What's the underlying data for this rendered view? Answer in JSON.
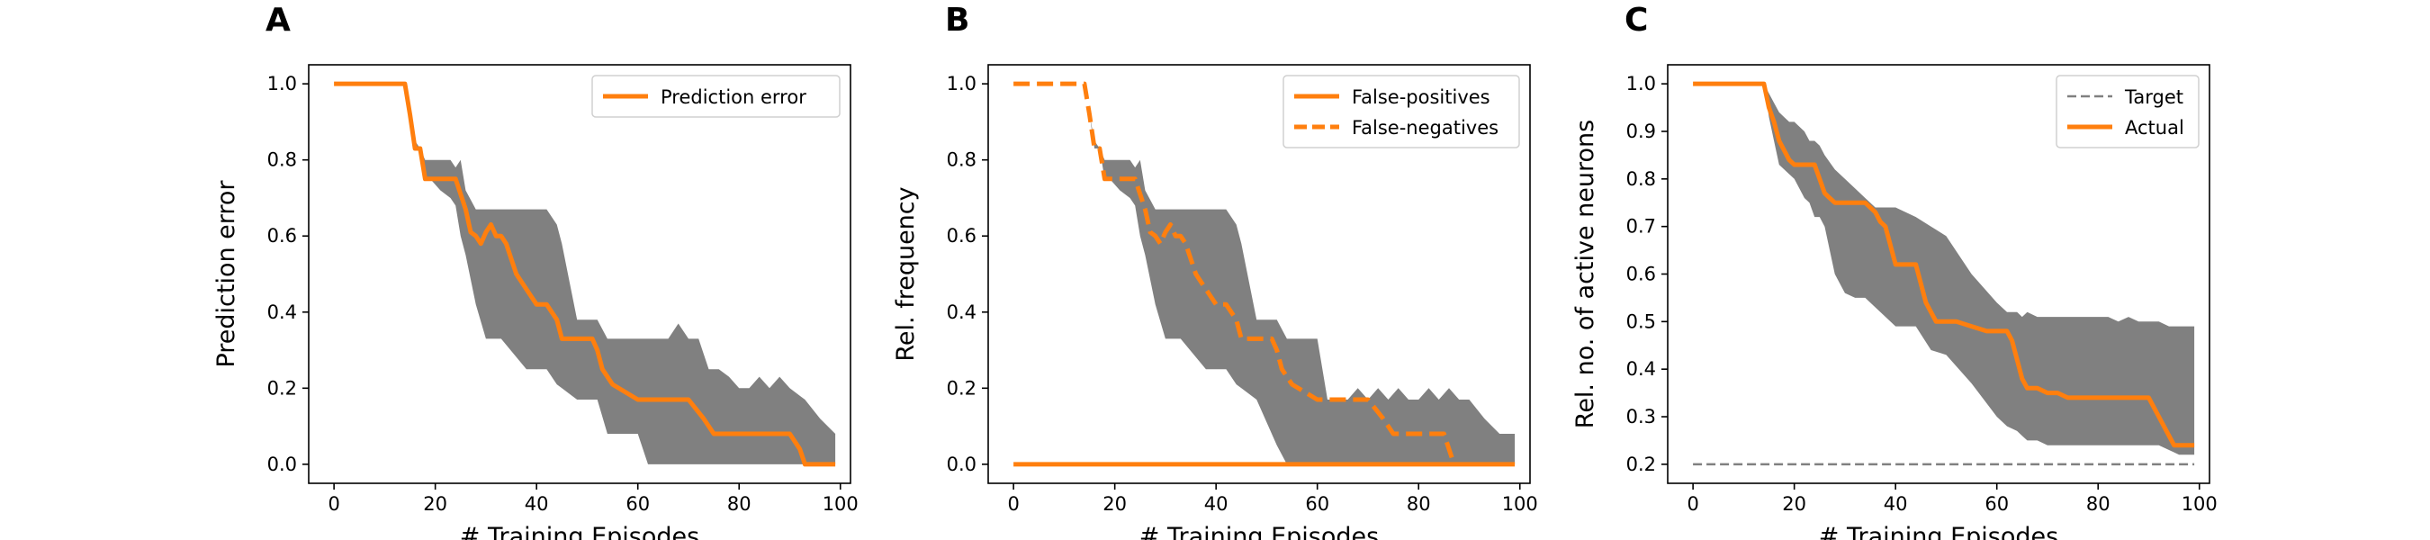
{
  "chart_data": [
    {
      "type": "line",
      "panel_label": "A",
      "xlabel": "# Training Episodes",
      "ylabel": "Prediction error",
      "xlim": [
        -5,
        102
      ],
      "ylim": [
        -0.05,
        1.05
      ],
      "xticks": [
        0,
        20,
        40,
        60,
        80,
        100
      ],
      "yticks": [
        0.0,
        0.2,
        0.4,
        0.6,
        0.8,
        1.0
      ],
      "xtick_labels": [
        "0",
        "20",
        "40",
        "60",
        "80",
        "100"
      ],
      "ytick_labels": [
        "0.0",
        "0.2",
        "0.4",
        "0.6",
        "0.8",
        "1.0"
      ],
      "legend_position": "top-right",
      "series": [
        {
          "name": "Prediction error",
          "color": "#ff7f0e",
          "style": "solid",
          "x": [
            0,
            14,
            15,
            16,
            17,
            18,
            19,
            24,
            25,
            26,
            27,
            28,
            29,
            30,
            31,
            32,
            33,
            34,
            36,
            38,
            40,
            42,
            44,
            45,
            48,
            50,
            51,
            52,
            53,
            55,
            60,
            65,
            70,
            73,
            75,
            80,
            85,
            90,
            92,
            93,
            94,
            99
          ],
          "y": [
            1.0,
            1.0,
            0.92,
            0.83,
            0.83,
            0.75,
            0.75,
            0.75,
            0.71,
            0.67,
            0.61,
            0.6,
            0.58,
            0.61,
            0.63,
            0.6,
            0.6,
            0.58,
            0.5,
            0.46,
            0.42,
            0.42,
            0.38,
            0.33,
            0.33,
            0.33,
            0.33,
            0.3,
            0.25,
            0.21,
            0.17,
            0.17,
            0.17,
            0.12,
            0.08,
            0.08,
            0.08,
            0.08,
            0.04,
            0.0,
            0.0,
            0.0
          ]
        }
      ],
      "bands": [
        {
          "color": "#808080",
          "x": [
            0,
            14,
            15,
            16,
            17,
            18,
            19,
            21,
            23,
            24,
            25,
            26,
            28,
            30,
            33,
            38,
            42,
            44,
            45,
            48,
            52,
            54,
            58,
            60,
            62,
            64,
            66,
            68,
            70,
            72,
            74,
            76,
            78,
            80,
            82,
            84,
            86,
            88,
            90,
            93,
            96,
            99
          ],
          "upper": [
            1.0,
            1.0,
            0.92,
            0.85,
            0.83,
            0.8,
            0.8,
            0.8,
            0.8,
            0.78,
            0.8,
            0.72,
            0.67,
            0.67,
            0.67,
            0.67,
            0.67,
            0.63,
            0.58,
            0.38,
            0.38,
            0.33,
            0.33,
            0.33,
            0.33,
            0.33,
            0.33,
            0.37,
            0.33,
            0.33,
            0.25,
            0.25,
            0.23,
            0.2,
            0.2,
            0.23,
            0.2,
            0.23,
            0.2,
            0.17,
            0.12,
            0.08
          ],
          "lower": [
            1.0,
            1.0,
            0.92,
            0.83,
            0.83,
            0.75,
            0.75,
            0.72,
            0.7,
            0.68,
            0.6,
            0.55,
            0.42,
            0.33,
            0.33,
            0.25,
            0.25,
            0.21,
            0.2,
            0.17,
            0.17,
            0.08,
            0.08,
            0.08,
            0.0,
            0.0,
            0.0,
            0.0,
            0.0,
            0.0,
            0.0,
            0.0,
            0.0,
            0.0,
            0.0,
            0.0,
            0.0,
            0.0,
            0.0,
            0.0,
            0.0,
            0.0
          ]
        }
      ]
    },
    {
      "type": "line",
      "panel_label": "B",
      "xlabel": "# Training Episodes",
      "ylabel": "Rel. frequency",
      "xlim": [
        -5,
        102
      ],
      "ylim": [
        -0.05,
        1.05
      ],
      "xticks": [
        0,
        20,
        40,
        60,
        80,
        100
      ],
      "yticks": [
        0.0,
        0.2,
        0.4,
        0.6,
        0.8,
        1.0
      ],
      "xtick_labels": [
        "0",
        "20",
        "40",
        "60",
        "80",
        "100"
      ],
      "ytick_labels": [
        "0.0",
        "0.2",
        "0.4",
        "0.6",
        "0.8",
        "1.0"
      ],
      "legend_position": "top-right",
      "series": [
        {
          "name": "False-positives",
          "color": "#ff7f0e",
          "style": "solid",
          "x": [
            0,
            99
          ],
          "y": [
            0.0,
            0.0
          ]
        },
        {
          "name": "False-negatives",
          "color": "#ff7f0e",
          "style": "dashed",
          "x": [
            0,
            14,
            15,
            16,
            17,
            18,
            19,
            24,
            25,
            26,
            27,
            28,
            29,
            30,
            31,
            32,
            33,
            34,
            36,
            38,
            40,
            42,
            44,
            45,
            48,
            50,
            51,
            52,
            53,
            55,
            60,
            65,
            70,
            73,
            75,
            80,
            85,
            86,
            87
          ],
          "y": [
            1.0,
            1.0,
            0.92,
            0.83,
            0.83,
            0.75,
            0.75,
            0.75,
            0.71,
            0.67,
            0.61,
            0.6,
            0.58,
            0.61,
            0.63,
            0.6,
            0.6,
            0.58,
            0.5,
            0.46,
            0.42,
            0.42,
            0.38,
            0.33,
            0.33,
            0.33,
            0.33,
            0.3,
            0.25,
            0.21,
            0.17,
            0.17,
            0.17,
            0.12,
            0.08,
            0.08,
            0.08,
            0.04,
            0.0
          ]
        }
      ],
      "bands": [
        {
          "color": "#808080",
          "x": [
            0,
            14,
            15,
            16,
            17,
            18,
            19,
            21,
            23,
            24,
            25,
            26,
            28,
            30,
            33,
            38,
            42,
            44,
            45,
            48,
            52,
            54,
            58,
            60,
            62,
            64,
            66,
            68,
            70,
            72,
            74,
            76,
            78,
            80,
            82,
            84,
            86,
            88,
            90,
            93,
            96,
            99
          ],
          "upper": [
            1.0,
            1.0,
            0.92,
            0.85,
            0.83,
            0.8,
            0.8,
            0.8,
            0.8,
            0.78,
            0.8,
            0.72,
            0.67,
            0.67,
            0.67,
            0.67,
            0.67,
            0.63,
            0.58,
            0.38,
            0.38,
            0.33,
            0.33,
            0.33,
            0.17,
            0.17,
            0.17,
            0.2,
            0.17,
            0.2,
            0.17,
            0.2,
            0.17,
            0.17,
            0.2,
            0.17,
            0.2,
            0.17,
            0.17,
            0.12,
            0.08,
            0.08
          ],
          "lower": [
            1.0,
            1.0,
            0.92,
            0.83,
            0.83,
            0.75,
            0.75,
            0.72,
            0.7,
            0.68,
            0.6,
            0.55,
            0.42,
            0.33,
            0.33,
            0.25,
            0.25,
            0.21,
            0.2,
            0.17,
            0.05,
            0.0,
            0.0,
            0.0,
            0.0,
            0.0,
            0.0,
            0.0,
            0.0,
            0.0,
            0.0,
            0.0,
            0.0,
            0.0,
            0.0,
            0.0,
            0.0,
            0.0,
            0.0,
            0.0,
            0.0,
            0.0
          ]
        }
      ]
    },
    {
      "type": "line",
      "panel_label": "C",
      "xlabel": "# Training Episodes",
      "ylabel": "Rel. no. of active neurons",
      "xlim": [
        -5,
        102
      ],
      "ylim": [
        0.16,
        1.04
      ],
      "xticks": [
        0,
        20,
        40,
        60,
        80,
        100
      ],
      "yticks": [
        0.2,
        0.3,
        0.4,
        0.5,
        0.6,
        0.7,
        0.8,
        0.9,
        1.0
      ],
      "xtick_labels": [
        "0",
        "20",
        "40",
        "60",
        "80",
        "100"
      ],
      "ytick_labels": [
        "0.2",
        "0.3",
        "0.4",
        "0.5",
        "0.6",
        "0.7",
        "0.8",
        "0.9",
        "1.0"
      ],
      "legend_position": "top-right",
      "series": [
        {
          "name": "Target",
          "color": "#808080",
          "style": "dashed",
          "x": [
            0,
            99
          ],
          "y": [
            0.2,
            0.2
          ]
        },
        {
          "name": "Actual",
          "color": "#ff7f0e",
          "style": "solid",
          "x": [
            0,
            14,
            15,
            16,
            17,
            18,
            19,
            20,
            22,
            24,
            25,
            26,
            27,
            28,
            30,
            32,
            34,
            36,
            37,
            38,
            40,
            42,
            44,
            45,
            46,
            48,
            50,
            52,
            55,
            58,
            60,
            62,
            63,
            64,
            65,
            66,
            68,
            70,
            72,
            74,
            75,
            80,
            85,
            90,
            92,
            94,
            95,
            96,
            99
          ],
          "y": [
            1.0,
            1.0,
            0.95,
            0.92,
            0.88,
            0.86,
            0.84,
            0.83,
            0.83,
            0.83,
            0.8,
            0.77,
            0.76,
            0.75,
            0.75,
            0.75,
            0.75,
            0.73,
            0.71,
            0.7,
            0.62,
            0.62,
            0.62,
            0.58,
            0.54,
            0.5,
            0.5,
            0.5,
            0.49,
            0.48,
            0.48,
            0.48,
            0.46,
            0.42,
            0.38,
            0.36,
            0.36,
            0.35,
            0.35,
            0.34,
            0.34,
            0.34,
            0.34,
            0.34,
            0.3,
            0.26,
            0.24,
            0.24,
            0.24
          ]
        }
      ],
      "bands": [
        {
          "color": "#808080",
          "x": [
            0,
            14,
            15,
            16,
            17,
            18,
            19,
            20,
            21,
            22,
            23,
            24,
            25,
            26,
            28,
            30,
            32,
            34,
            36,
            40,
            44,
            47,
            50,
            55,
            60,
            62,
            64,
            65,
            66,
            68,
            70,
            72,
            74,
            76,
            78,
            80,
            82,
            84,
            86,
            88,
            90,
            92,
            94,
            96,
            99
          ],
          "upper": [
            1.0,
            1.0,
            0.98,
            0.96,
            0.94,
            0.93,
            0.92,
            0.92,
            0.91,
            0.9,
            0.88,
            0.88,
            0.87,
            0.85,
            0.82,
            0.8,
            0.78,
            0.76,
            0.74,
            0.74,
            0.72,
            0.7,
            0.68,
            0.6,
            0.54,
            0.52,
            0.52,
            0.51,
            0.52,
            0.51,
            0.51,
            0.51,
            0.51,
            0.51,
            0.51,
            0.51,
            0.51,
            0.5,
            0.51,
            0.5,
            0.5,
            0.5,
            0.49,
            0.49,
            0.49
          ],
          "lower": [
            1.0,
            1.0,
            0.93,
            0.88,
            0.83,
            0.82,
            0.81,
            0.8,
            0.78,
            0.76,
            0.75,
            0.72,
            0.72,
            0.7,
            0.6,
            0.56,
            0.55,
            0.55,
            0.53,
            0.49,
            0.49,
            0.44,
            0.43,
            0.37,
            0.3,
            0.28,
            0.27,
            0.26,
            0.25,
            0.25,
            0.24,
            0.24,
            0.24,
            0.24,
            0.24,
            0.24,
            0.24,
            0.24,
            0.24,
            0.24,
            0.24,
            0.24,
            0.23,
            0.22,
            0.22
          ]
        }
      ]
    }
  ]
}
